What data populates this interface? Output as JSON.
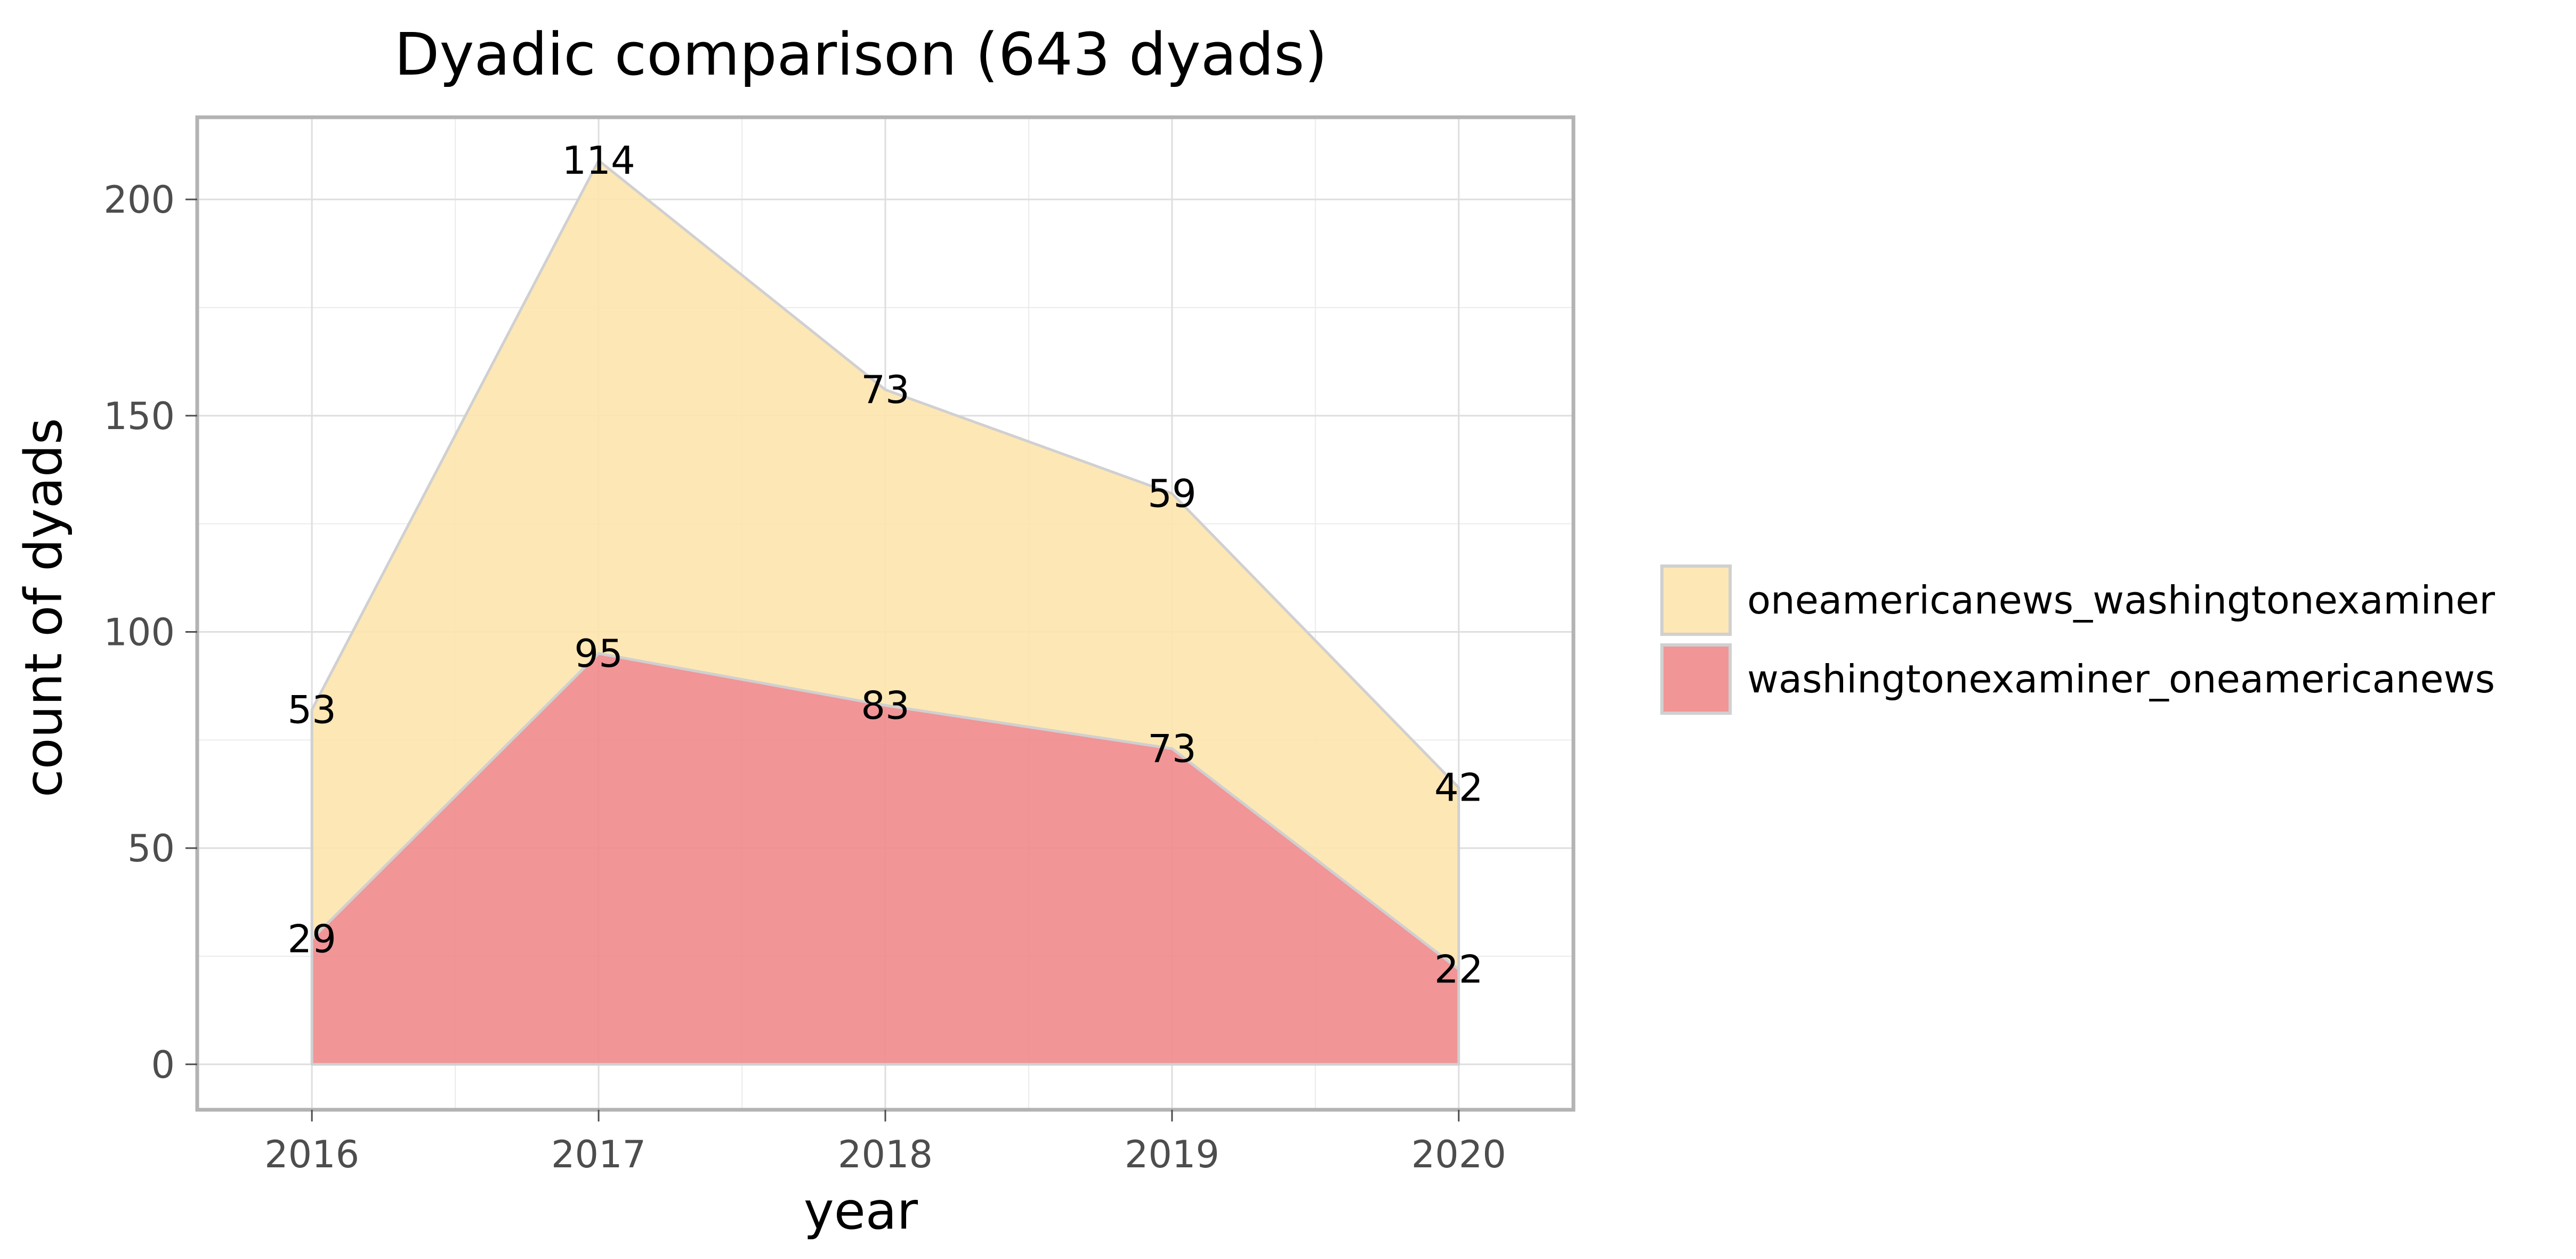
{
  "chart_data": {
    "type": "area",
    "stacked": true,
    "title": "Dyadic comparison (643 dyads)",
    "xlabel": "year",
    "ylabel": "count of dyads",
    "categories": [
      "2016",
      "2017",
      "2018",
      "2019",
      "2020"
    ],
    "x": [
      2016,
      2017,
      2018,
      2019,
      2020
    ],
    "xlim": [
      2015.6,
      2020.4
    ],
    "ylim": [
      -10.5,
      219
    ],
    "yticks": [
      0,
      50,
      100,
      150,
      200
    ],
    "series": [
      {
        "name": "washingtonexaminer_oneamericanews",
        "values": [
          29,
          95,
          83,
          73,
          22
        ],
        "color": "#ef8a8c"
      },
      {
        "name": "oneamericanews_washingtonexaminer",
        "values": [
          53,
          114,
          73,
          59,
          42
        ],
        "color": "#fde4ad"
      }
    ],
    "grid": true,
    "legend_position": "right",
    "legend_order": [
      "oneamericanews_washingtonexaminer",
      "washingtonexaminer_oneamericanews"
    ]
  }
}
